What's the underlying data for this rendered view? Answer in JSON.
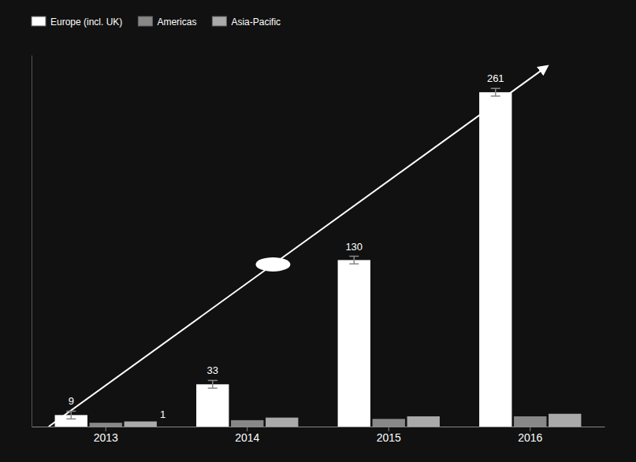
{
  "chart_data": {
    "type": "bar",
    "categories": [
      "2013",
      "2014",
      "2015",
      "2016"
    ],
    "series": [
      {
        "name": "Europe (incl. UK)",
        "color": "#ffffff",
        "values": [
          9,
          33,
          130,
          261
        ],
        "errors": [
          3,
          3,
          3,
          3
        ],
        "data_labels": true
      },
      {
        "name": "Americas",
        "color": "#888888",
        "values": [
          3,
          5,
          6,
          8
        ]
      },
      {
        "name": "Asia-Pacific",
        "color": "#aaaaaa",
        "values": [
          4,
          7,
          8,
          10
        ]
      }
    ],
    "ylim": [
      0,
      290
    ],
    "legend": "top",
    "tick_labels": "x",
    "annotations": [
      {
        "text": "1",
        "x": "2013"
      }
    ]
  }
}
